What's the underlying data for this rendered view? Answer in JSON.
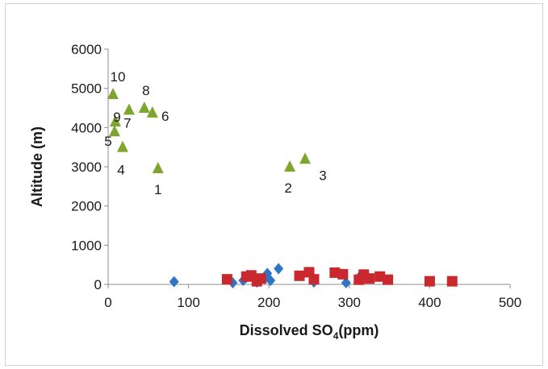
{
  "chart_data": {
    "type": "scatter",
    "title": "",
    "xlabel": "Dissolved SO",
    "xlabel_sub": "4",
    "xlabel_suffix": "(ppm)",
    "ylabel": "Altitude (m)",
    "xlim": [
      0,
      500
    ],
    "ylim": [
      0,
      6000
    ],
    "xticks": [
      0,
      100,
      200,
      300,
      400,
      500
    ],
    "yticks": [
      0,
      1000,
      2000,
      3000,
      4000,
      5000,
      6000
    ],
    "grid": false,
    "legend": "none",
    "series": [
      {
        "marker": "diamond",
        "color": "#2e75c6",
        "points": [
          {
            "x": 82,
            "y": 70
          },
          {
            "x": 155,
            "y": 40
          },
          {
            "x": 168,
            "y": 100
          },
          {
            "x": 172,
            "y": 180
          },
          {
            "x": 185,
            "y": 60
          },
          {
            "x": 195,
            "y": 150
          },
          {
            "x": 198,
            "y": 280
          },
          {
            "x": 202,
            "y": 100
          },
          {
            "x": 212,
            "y": 400
          },
          {
            "x": 256,
            "y": 60
          },
          {
            "x": 296,
            "y": 40
          },
          {
            "x": 312,
            "y": 180
          }
        ]
      },
      {
        "marker": "square",
        "color": "#c8282e",
        "points": [
          {
            "x": 148,
            "y": 130
          },
          {
            "x": 172,
            "y": 200
          },
          {
            "x": 178,
            "y": 230
          },
          {
            "x": 185,
            "y": 80
          },
          {
            "x": 190,
            "y": 150
          },
          {
            "x": 238,
            "y": 220
          },
          {
            "x": 250,
            "y": 310
          },
          {
            "x": 256,
            "y": 130
          },
          {
            "x": 282,
            "y": 300
          },
          {
            "x": 292,
            "y": 260
          },
          {
            "x": 312,
            "y": 120
          },
          {
            "x": 318,
            "y": 250
          },
          {
            "x": 325,
            "y": 150
          },
          {
            "x": 338,
            "y": 200
          },
          {
            "x": 348,
            "y": 120
          },
          {
            "x": 400,
            "y": 80
          },
          {
            "x": 428,
            "y": 80
          }
        ]
      },
      {
        "marker": "triangle",
        "color": "#7ea62f",
        "points": [
          {
            "x": 62,
            "y": 2960,
            "label": "1"
          },
          {
            "x": 226,
            "y": 3000,
            "label": "2"
          },
          {
            "x": 245,
            "y": 3200,
            "label": "3"
          },
          {
            "x": 18,
            "y": 3500,
            "label": "4"
          },
          {
            "x": 8,
            "y": 3900,
            "label": "5"
          },
          {
            "x": 55,
            "y": 4380,
            "label": "6"
          },
          {
            "x": 26,
            "y": 4450,
            "label": "7"
          },
          {
            "x": 45,
            "y": 4500,
            "label": "8"
          },
          {
            "x": 9,
            "y": 4150,
            "label": "9"
          },
          {
            "x": 6,
            "y": 4850,
            "label": "10"
          }
        ]
      }
    ]
  }
}
